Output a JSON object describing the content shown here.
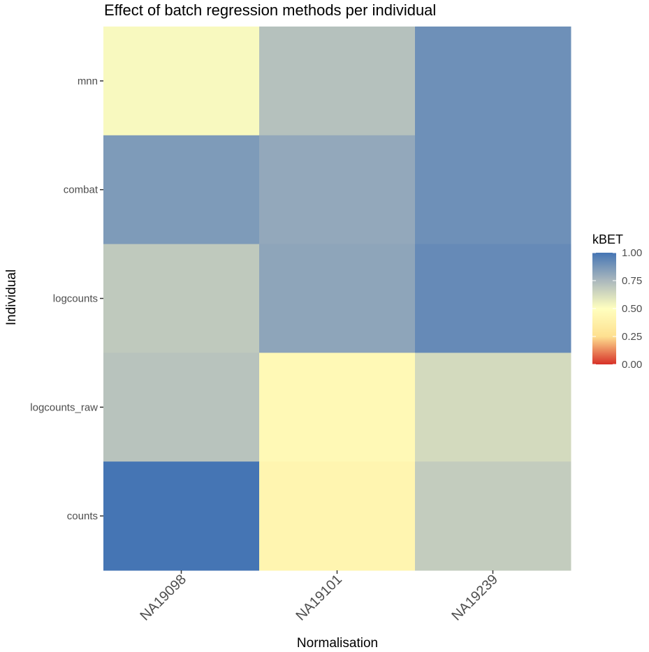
{
  "chart_data": {
    "type": "heatmap",
    "title": "Effect of batch regression methods per individual",
    "xlabel": "Normalisation",
    "ylabel": "Individual",
    "x_categories": [
      "NA19098",
      "NA19101",
      "NA19239"
    ],
    "y_categories": [
      "counts",
      "logcounts_raw",
      "logcounts",
      "combat",
      "mnn"
    ],
    "values": [
      {
        "x": "NA19098",
        "y": "mnn",
        "value": 0.52
      },
      {
        "x": "NA19101",
        "y": "mnn",
        "value": 0.72
      },
      {
        "x": "NA19239",
        "y": "mnn",
        "value": 0.9
      },
      {
        "x": "NA19098",
        "y": "combat",
        "value": 0.86
      },
      {
        "x": "NA19101",
        "y": "combat",
        "value": 0.81
      },
      {
        "x": "NA19239",
        "y": "combat",
        "value": 0.9
      },
      {
        "x": "NA19098",
        "y": "logcounts",
        "value": 0.69
      },
      {
        "x": "NA19101",
        "y": "logcounts",
        "value": 0.82
      },
      {
        "x": "NA19239",
        "y": "logcounts",
        "value": 0.92
      },
      {
        "x": "NA19098",
        "y": "logcounts_raw",
        "value": 0.71
      },
      {
        "x": "NA19101",
        "y": "logcounts_raw",
        "value": 0.45
      },
      {
        "x": "NA19239",
        "y": "logcounts_raw",
        "value": 0.63
      },
      {
        "x": "NA19098",
        "y": "counts",
        "value": 1.0
      },
      {
        "x": "NA19101",
        "y": "counts",
        "value": 0.42
      },
      {
        "x": "NA19239",
        "y": "counts",
        "value": 0.68
      }
    ],
    "legend": {
      "title": "kBET",
      "position": "right",
      "range": [
        0,
        1
      ],
      "ticks": [
        1.0,
        0.75,
        0.5,
        0.25,
        0.0
      ],
      "tick_labels": [
        "1.00",
        "0.75",
        "0.50",
        "0.25",
        "0.00"
      ],
      "colors": {
        "low": "#d73027",
        "midlow": "#fee090",
        "mid": "#ffffbf",
        "midhigh": "#abb8bd",
        "high": "#4575b4"
      }
    },
    "grid": false
  }
}
